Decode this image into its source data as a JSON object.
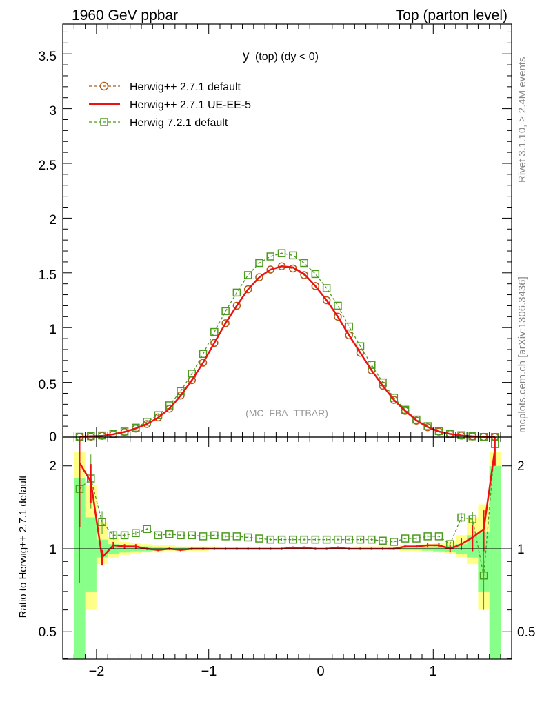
{
  "header": {
    "left": "1960 GeV ppbar",
    "right": "Top (parton level)"
  },
  "side": {
    "rivet": "Rivet 3.1.10, ≥ 2.4M events",
    "mcplots": "mcplots.cern.ch [arXiv:1306.3436]"
  },
  "main": {
    "title_main": "y",
    "title_sub": "(top) (dy < 0)",
    "watermark": "(MC_FBA_TTBAR)",
    "ytick_labels": [
      "0",
      "0.5",
      "1",
      "1.5",
      "2",
      "2.5",
      "3",
      "3.5"
    ]
  },
  "ratio": {
    "ylabel": "Ratio to Herwig++ 2.7.1 default",
    "ytick_labels_left": [
      "0.5",
      "1",
      "2"
    ],
    "ytick_labels_right": [
      "0.5",
      "1",
      "2"
    ]
  },
  "xaxis": {
    "tick_labels": [
      "−2",
      "−1",
      "0",
      "1"
    ]
  },
  "legend": [
    {
      "label": "Herwig++ 2.7.1 default",
      "color": "#b05a14"
    },
    {
      "label": "Herwig++ 2.7.1 UE-EE-5",
      "color": "#ee1111"
    },
    {
      "label": "Herwig 7.2.1 default",
      "color": "#4c9a1e"
    }
  ],
  "chart_data": [
    {
      "type": "line",
      "xlim": [
        -2.25,
        1.65
      ],
      "ylim": [
        0,
        3.75
      ],
      "yticks": [
        0,
        0.5,
        1,
        1.5,
        2,
        2.5,
        3,
        3.5
      ],
      "xticks": [
        -2,
        -1,
        0,
        1
      ],
      "x": [
        -2.15,
        -2.05,
        -1.95,
        -1.85,
        -1.75,
        -1.65,
        -1.55,
        -1.45,
        -1.35,
        -1.25,
        -1.15,
        -1.05,
        -0.95,
        -0.85,
        -0.75,
        -0.65,
        -0.55,
        -0.45,
        -0.35,
        -0.25,
        -0.15,
        -0.05,
        0.05,
        0.15,
        0.25,
        0.35,
        0.45,
        0.55,
        0.65,
        0.75,
        0.85,
        0.95,
        1.05,
        1.15,
        1.25,
        1.35,
        1.45,
        1.55
      ],
      "series": [
        {
          "name": "Herwig++ 2.7.1 default",
          "color": "#b05a14",
          "marker": "circle",
          "dashed": true,
          "values": [
            0.002,
            0.005,
            0.012,
            0.025,
            0.046,
            0.078,
            0.12,
            0.18,
            0.26,
            0.38,
            0.52,
            0.68,
            0.86,
            1.04,
            1.2,
            1.35,
            1.46,
            1.53,
            1.56,
            1.54,
            1.48,
            1.38,
            1.25,
            1.1,
            0.93,
            0.77,
            0.61,
            0.47,
            0.34,
            0.24,
            0.15,
            0.09,
            0.05,
            0.028,
            0.014,
            0.006,
            0.002,
            0.001
          ]
        },
        {
          "name": "Herwig++ 2.7.1 UE-EE-5",
          "color": "#ee1111",
          "marker": "none",
          "dashed": false,
          "values": [
            0.004,
            0.008,
            0.011,
            0.026,
            0.047,
            0.079,
            0.12,
            0.178,
            0.26,
            0.38,
            0.52,
            0.68,
            0.86,
            1.04,
            1.2,
            1.35,
            1.46,
            1.53,
            1.56,
            1.55,
            1.49,
            1.38,
            1.25,
            1.1,
            0.93,
            0.77,
            0.61,
            0.47,
            0.34,
            0.24,
            0.153,
            0.092,
            0.051,
            0.029,
            0.015,
            0.007,
            0.0024,
            0.003
          ]
        },
        {
          "name": "Herwig 7.2.1 default",
          "color": "#4c9a1e",
          "marker": "square",
          "dashed": true,
          "values": [
            0.003,
            0.009,
            0.015,
            0.028,
            0.051,
            0.086,
            0.14,
            0.2,
            0.29,
            0.42,
            0.58,
            0.76,
            0.96,
            1.15,
            1.32,
            1.48,
            1.59,
            1.65,
            1.68,
            1.66,
            1.59,
            1.49,
            1.36,
            1.2,
            1.01,
            0.83,
            0.66,
            0.5,
            0.36,
            0.25,
            0.16,
            0.1,
            0.055,
            0.029,
            0.017,
            0.008,
            0.0016,
            0.001
          ]
        }
      ]
    },
    {
      "type": "line",
      "xlim": [
        -2.25,
        1.65
      ],
      "ylim": [
        0.37,
        2.25
      ],
      "yscale": "log",
      "yticks": [
        0.5,
        1,
        2
      ],
      "x": [
        -2.15,
        -2.05,
        -1.95,
        -1.85,
        -1.75,
        -1.65,
        -1.55,
        -1.45,
        -1.35,
        -1.25,
        -1.15,
        -1.05,
        -0.95,
        -0.85,
        -0.75,
        -0.65,
        -0.55,
        -0.45,
        -0.35,
        -0.25,
        -0.15,
        -0.05,
        0.05,
        0.15,
        0.25,
        0.35,
        0.45,
        0.55,
        0.65,
        0.75,
        0.85,
        0.95,
        1.05,
        1.15,
        1.25,
        1.35,
        1.45,
        1.55
      ],
      "bands": {
        "yellow": {
          "color": "#ffff88",
          "lower": [
            0.45,
            0.6,
            0.88,
            0.93,
            0.95,
            0.96,
            0.97,
            0.97,
            0.98,
            0.98,
            0.98,
            0.98,
            0.99,
            0.99,
            0.99,
            0.99,
            0.99,
            0.99,
            0.99,
            0.99,
            0.99,
            0.99,
            0.99,
            0.99,
            0.99,
            0.99,
            0.99,
            0.99,
            0.99,
            0.98,
            0.98,
            0.98,
            0.97,
            0.96,
            0.93,
            0.88,
            0.6,
            0.4
          ],
          "upper": [
            2.25,
            1.7,
            1.25,
            1.1,
            1.06,
            1.05,
            1.04,
            1.03,
            1.03,
            1.02,
            1.02,
            1.02,
            1.02,
            1.01,
            1.01,
            1.01,
            1.01,
            1.01,
            1.01,
            1.01,
            1.01,
            1.01,
            1.01,
            1.01,
            1.01,
            1.02,
            1.02,
            1.02,
            1.02,
            1.03,
            1.03,
            1.04,
            1.05,
            1.06,
            1.12,
            1.3,
            1.45,
            2.25
          ]
        },
        "green": {
          "color": "#88ff88",
          "lower": [
            0.37,
            0.7,
            0.93,
            0.96,
            0.97,
            0.98,
            0.98,
            0.985,
            0.99,
            0.99,
            0.99,
            0.99,
            0.995,
            0.995,
            0.995,
            0.995,
            0.995,
            0.995,
            0.995,
            0.995,
            0.995,
            0.995,
            0.995,
            0.995,
            0.995,
            0.995,
            0.995,
            0.995,
            0.99,
            0.99,
            0.99,
            0.985,
            0.98,
            0.975,
            0.96,
            0.93,
            0.7,
            0.37
          ],
          "upper": [
            1.8,
            1.3,
            1.08,
            1.04,
            1.03,
            1.02,
            1.02,
            1.015,
            1.01,
            1.01,
            1.01,
            1.01,
            1.005,
            1.005,
            1.005,
            1.005,
            1.005,
            1.005,
            1.005,
            1.005,
            1.005,
            1.005,
            1.005,
            1.005,
            1.005,
            1.005,
            1.005,
            1.005,
            1.01,
            1.01,
            1.01,
            1.015,
            1.02,
            1.025,
            1.04,
            1.12,
            1.15,
            2.0
          ]
        }
      },
      "series": [
        {
          "name": "Herwig++ 2.7.1 UE-EE-5",
          "color": "#ee1111",
          "marker": "none",
          "dashed": false,
          "values": [
            2.05,
            1.75,
            0.93,
            1.03,
            1.02,
            1.02,
            1.0,
            0.99,
            1.0,
            0.99,
            1.0,
            1.0,
            1.0,
            1.0,
            1.0,
            1.0,
            1.0,
            1.0,
            1.0,
            1.01,
            1.01,
            1.0,
            1.0,
            1.01,
            1.0,
            1.0,
            1.0,
            1.0,
            1.0,
            1.02,
            1.02,
            1.03,
            1.03,
            1.0,
            1.04,
            1.1,
            1.18,
            2.3
          ],
          "err": [
            0.85,
            0.28,
            0.06,
            0.03,
            0.02,
            0.02,
            0.01,
            0.01,
            0.01,
            0.01,
            0.01,
            0.01,
            0.01,
            0.01,
            0.01,
            0.01,
            0.01,
            0.01,
            0.01,
            0.01,
            0.01,
            0.01,
            0.01,
            0.01,
            0.01,
            0.01,
            0.01,
            0.01,
            0.01,
            0.01,
            0.01,
            0.02,
            0.02,
            0.03,
            0.05,
            0.12,
            0.2,
            0.3
          ]
        },
        {
          "name": "Herwig 7.2.1 default",
          "color": "#4c9a1e",
          "marker": "square",
          "dashed": true,
          "values": [
            1.65,
            1.8,
            1.25,
            1.12,
            1.12,
            1.14,
            1.18,
            1.12,
            1.13,
            1.12,
            1.12,
            1.11,
            1.12,
            1.11,
            1.11,
            1.1,
            1.09,
            1.08,
            1.08,
            1.08,
            1.08,
            1.08,
            1.08,
            1.08,
            1.08,
            1.08,
            1.08,
            1.07,
            1.06,
            1.09,
            1.09,
            1.11,
            1.11,
            1.04,
            1.3,
            1.28,
            0.8,
            2.4
          ],
          "err": [
            0.9,
            0.4,
            0.12,
            0.04,
            0.02,
            0.02,
            0.01,
            0.01,
            0.01,
            0.01,
            0.01,
            0.01,
            0.01,
            0.01,
            0.01,
            0.01,
            0.01,
            0.01,
            0.01,
            0.01,
            0.01,
            0.01,
            0.01,
            0.01,
            0.01,
            0.01,
            0.01,
            0.01,
            0.01,
            0.01,
            0.01,
            0.01,
            0.02,
            0.03,
            0.05,
            0.08,
            0.2,
            0.3
          ]
        }
      ]
    }
  ]
}
